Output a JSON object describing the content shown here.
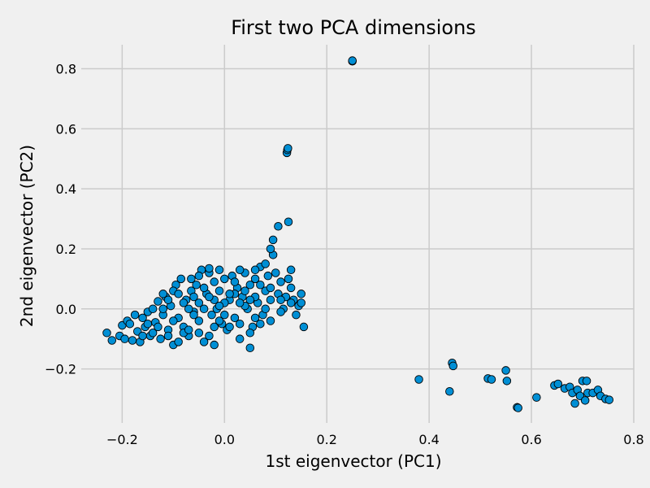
{
  "chart_data": {
    "type": "scatter",
    "title": "First two PCA dimensions",
    "xlabel": "1st eigenvector (PC1)",
    "ylabel": "2nd eigenvector (PC2)",
    "xlim": [
      -0.28,
      0.8
    ],
    "ylim": [
      -0.38,
      0.88
    ],
    "xticks": [
      -0.2,
      0.0,
      0.2,
      0.4,
      0.6,
      0.8
    ],
    "xtick_labels": [
      "−0.2",
      "0.0",
      "0.2",
      "0.4",
      "0.6",
      "0.8"
    ],
    "yticks": [
      -0.2,
      0.0,
      0.2,
      0.4,
      0.6,
      0.8
    ],
    "ytick_labels": [
      "−0.2",
      "0.0",
      "0.2",
      "0.4",
      "0.6",
      "0.8"
    ],
    "grid": true,
    "marker_color": "#008fd5",
    "marker_edge_color": "#000000",
    "background_color": "#f0f0f0",
    "points": [
      [
        -0.23,
        -0.08
      ],
      [
        -0.22,
        -0.105
      ],
      [
        -0.205,
        -0.09
      ],
      [
        -0.2,
        -0.055
      ],
      [
        -0.195,
        -0.1
      ],
      [
        -0.19,
        -0.04
      ],
      [
        -0.185,
        -0.05
      ],
      [
        -0.18,
        -0.105
      ],
      [
        -0.175,
        -0.02
      ],
      [
        -0.17,
        -0.075
      ],
      [
        -0.165,
        -0.11
      ],
      [
        -0.16,
        -0.03
      ],
      [
        -0.155,
        -0.06
      ],
      [
        -0.15,
        -0.01
      ],
      [
        -0.145,
        -0.09
      ],
      [
        -0.14,
        0.0
      ],
      [
        -0.135,
        -0.045
      ],
      [
        -0.13,
        0.025
      ],
      [
        -0.125,
        -0.1
      ],
      [
        -0.12,
        -0.02
      ],
      [
        -0.115,
        0.04
      ],
      [
        -0.11,
        -0.07
      ],
      [
        -0.105,
        0.01
      ],
      [
        -0.1,
        -0.12
      ],
      [
        -0.095,
        0.08
      ],
      [
        -0.09,
        -0.03
      ],
      [
        -0.085,
        0.1
      ],
      [
        -0.08,
        -0.06
      ],
      [
        -0.075,
        0.03
      ],
      [
        -0.07,
        -0.09
      ],
      [
        -0.065,
        0.06
      ],
      [
        -0.06,
        -0.01
      ],
      [
        -0.055,
        0.08
      ],
      [
        -0.05,
        -0.04
      ],
      [
        -0.045,
        0.13
      ],
      [
        -0.04,
        -0.11
      ],
      [
        -0.035,
        0.05
      ],
      [
        -0.03,
        0.12
      ],
      [
        -0.025,
        -0.02
      ],
      [
        -0.02,
        0.09
      ],
      [
        -0.015,
        0.0
      ],
      [
        -0.01,
        0.06
      ],
      [
        -0.005,
        -0.05
      ],
      [
        0.0,
        0.1
      ],
      [
        0.005,
        -0.07
      ],
      [
        0.01,
        0.03
      ],
      [
        0.015,
        0.11
      ],
      [
        0.02,
        -0.03
      ],
      [
        0.025,
        0.07
      ],
      [
        0.03,
        -0.1
      ],
      [
        0.035,
        0.04
      ],
      [
        0.04,
        0.12
      ],
      [
        0.045,
        0.0
      ],
      [
        0.05,
        0.08
      ],
      [
        0.055,
        -0.06
      ],
      [
        0.06,
        0.1
      ],
      [
        0.065,
        0.02
      ],
      [
        0.07,
        0.14
      ],
      [
        0.075,
        -0.02
      ],
      [
        0.08,
        0.06
      ],
      [
        0.085,
        0.11
      ],
      [
        0.09,
        0.03
      ],
      [
        0.095,
        0.18
      ],
      [
        0.1,
        0.12
      ],
      [
        0.105,
        0.05
      ],
      [
        0.11,
        0.09
      ],
      [
        0.115,
        0.0
      ],
      [
        0.12,
        0.04
      ],
      [
        0.125,
        0.1
      ],
      [
        0.13,
        0.07
      ],
      [
        0.135,
        0.03
      ],
      [
        0.14,
        -0.02
      ],
      [
        0.145,
        0.01
      ],
      [
        0.15,
        0.05
      ],
      [
        0.155,
        -0.06
      ],
      [
        0.13,
        0.13
      ],
      [
        0.125,
        0.29
      ],
      [
        0.105,
        0.275
      ],
      [
        0.095,
        0.23
      ],
      [
        0.09,
        0.2
      ],
      [
        -0.1,
        0.06
      ],
      [
        -0.08,
        0.02
      ],
      [
        -0.06,
        -0.02
      ],
      [
        -0.04,
        0.0
      ],
      [
        -0.02,
        0.03
      ],
      [
        0.0,
        -0.02
      ],
      [
        0.02,
        0.05
      ],
      [
        0.04,
        0.01
      ],
      [
        0.06,
        0.04
      ],
      [
        0.08,
        0.0
      ],
      [
        -0.12,
        0.0
      ],
      [
        -0.1,
        -0.04
      ],
      [
        -0.08,
        -0.08
      ],
      [
        -0.06,
        0.04
      ],
      [
        -0.04,
        0.07
      ],
      [
        -0.02,
        -0.06
      ],
      [
        0.0,
        0.02
      ],
      [
        0.02,
        0.09
      ],
      [
        0.04,
        0.06
      ],
      [
        0.06,
        -0.03
      ],
      [
        -0.14,
        -0.08
      ],
      [
        -0.11,
        0.03
      ],
      [
        -0.09,
        0.05
      ],
      [
        -0.07,
        0.0
      ],
      [
        -0.05,
        0.02
      ],
      [
        -0.03,
        0.04
      ],
      [
        -0.01,
        0.01
      ],
      [
        0.01,
        0.05
      ],
      [
        0.03,
        0.02
      ],
      [
        0.05,
        0.03
      ],
      [
        0.07,
        0.08
      ],
      [
        0.09,
        0.07
      ],
      [
        0.11,
        0.03
      ],
      [
        0.08,
        0.15
      ],
      [
        0.06,
        0.13
      ],
      [
        0.03,
        0.13
      ],
      [
        -0.01,
        0.13
      ],
      [
        -0.03,
        0.135
      ],
      [
        -0.05,
        0.11
      ],
      [
        -0.065,
        0.1
      ],
      [
        -0.15,
        -0.05
      ],
      [
        -0.13,
        -0.06
      ],
      [
        -0.11,
        -0.09
      ],
      [
        -0.09,
        -0.11
      ],
      [
        -0.07,
        -0.07
      ],
      [
        -0.05,
        -0.08
      ],
      [
        -0.03,
        -0.09
      ],
      [
        -0.01,
        -0.04
      ],
      [
        0.01,
        -0.06
      ],
      [
        0.03,
        -0.05
      ],
      [
        0.05,
        -0.08
      ],
      [
        0.07,
        -0.05
      ],
      [
        0.09,
        -0.04
      ],
      [
        0.11,
        -0.01
      ],
      [
        0.13,
        0.02
      ],
      [
        0.15,
        0.02
      ],
      [
        -0.16,
        -0.09
      ],
      [
        -0.12,
        0.05
      ],
      [
        -0.02,
        -0.12
      ],
      [
        0.05,
        -0.13
      ],
      [
        0.25,
        0.825
      ],
      [
        0.25,
        0.827
      ],
      [
        0.122,
        0.52
      ],
      [
        0.123,
        0.53
      ],
      [
        0.124,
        0.535
      ],
      [
        0.38,
        -0.235
      ],
      [
        0.44,
        -0.275
      ],
      [
        0.445,
        -0.18
      ],
      [
        0.447,
        -0.19
      ],
      [
        0.515,
        -0.232
      ],
      [
        0.522,
        -0.235
      ],
      [
        0.55,
        -0.205
      ],
      [
        0.552,
        -0.24
      ],
      [
        0.572,
        -0.328
      ],
      [
        0.574,
        -0.33
      ],
      [
        0.61,
        -0.295
      ],
      [
        0.645,
        -0.255
      ],
      [
        0.652,
        -0.25
      ],
      [
        0.665,
        -0.265
      ],
      [
        0.675,
        -0.26
      ],
      [
        0.68,
        -0.28
      ],
      [
        0.685,
        -0.315
      ],
      [
        0.69,
        -0.27
      ],
      [
        0.695,
        -0.29
      ],
      [
        0.7,
        -0.24
      ],
      [
        0.705,
        -0.305
      ],
      [
        0.71,
        -0.28
      ],
      [
        0.72,
        -0.28
      ],
      [
        0.73,
        -0.27
      ],
      [
        0.735,
        -0.29
      ],
      [
        0.745,
        -0.3
      ],
      [
        0.752,
        -0.303
      ],
      [
        0.708,
        -0.24
      ]
    ]
  }
}
